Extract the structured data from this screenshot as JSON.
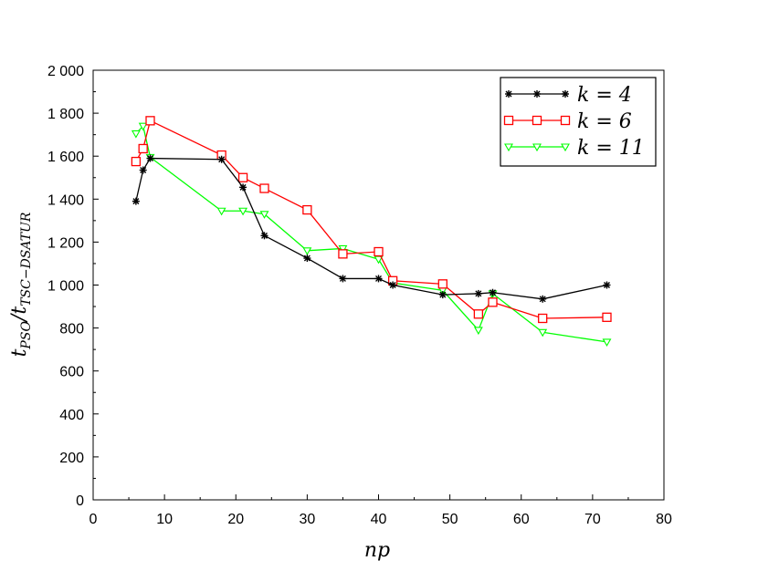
{
  "chart_data": {
    "type": "line",
    "xlabel": "np",
    "ylabel": {
      "main": "t",
      "sub1": "PSO",
      "sep": "/t",
      "sub2": "TSC−DSATUR"
    },
    "xlim": [
      0,
      80
    ],
    "ylim": [
      0,
      2000
    ],
    "x_ticks": [
      0,
      10,
      20,
      30,
      40,
      50,
      60,
      70,
      80
    ],
    "y_ticks": [
      0,
      200,
      400,
      600,
      800,
      1000,
      1200,
      1400,
      1600,
      1800,
      2000
    ],
    "x_tick_labels": [
      "0",
      "10",
      "20",
      "30",
      "40",
      "50",
      "60",
      "70",
      "80"
    ],
    "y_tick_labels": [
      "0",
      "200",
      "400",
      "600",
      "800",
      "1 000",
      "1 200",
      "1 400",
      "1 600",
      "1 800",
      "2 000"
    ],
    "grid": false,
    "legend_position": "top-right",
    "series": [
      {
        "name": "k = 4",
        "color": "#000000",
        "marker": "asterisk",
        "points": [
          [
            6,
            1390
          ],
          [
            7,
            1535
          ],
          [
            8,
            1590
          ],
          [
            18,
            1585
          ],
          [
            21,
            1455
          ],
          [
            24,
            1230
          ],
          [
            30,
            1125
          ],
          [
            35,
            1030
          ],
          [
            40,
            1030
          ],
          [
            42,
            1000
          ],
          [
            49,
            955
          ],
          [
            54,
            960
          ],
          [
            56,
            965
          ],
          [
            63,
            935
          ],
          [
            72,
            1000
          ]
        ]
      },
      {
        "name": "k = 6",
        "color": "#ff0000",
        "marker": "square",
        "points": [
          [
            6,
            1575
          ],
          [
            7,
            1635
          ],
          [
            8,
            1765
          ],
          [
            18,
            1605
          ],
          [
            21,
            1500
          ],
          [
            24,
            1450
          ],
          [
            30,
            1350
          ],
          [
            35,
            1145
          ],
          [
            40,
            1155
          ],
          [
            42,
            1020
          ],
          [
            49,
            1005
          ],
          [
            54,
            865
          ],
          [
            56,
            920
          ],
          [
            63,
            845
          ],
          [
            72,
            850
          ]
        ]
      },
      {
        "name": "k = 11",
        "color": "#00ff00",
        "marker": "triangle-down",
        "points": [
          [
            6,
            1705
          ],
          [
            7,
            1740
          ],
          [
            8,
            1595
          ],
          [
            18,
            1345
          ],
          [
            21,
            1345
          ],
          [
            24,
            1330
          ],
          [
            30,
            1160
          ],
          [
            35,
            1170
          ],
          [
            40,
            1120
          ],
          [
            42,
            1010
          ],
          [
            49,
            975
          ],
          [
            54,
            790
          ],
          [
            56,
            960
          ],
          [
            63,
            780
          ],
          [
            72,
            735
          ]
        ]
      }
    ]
  }
}
